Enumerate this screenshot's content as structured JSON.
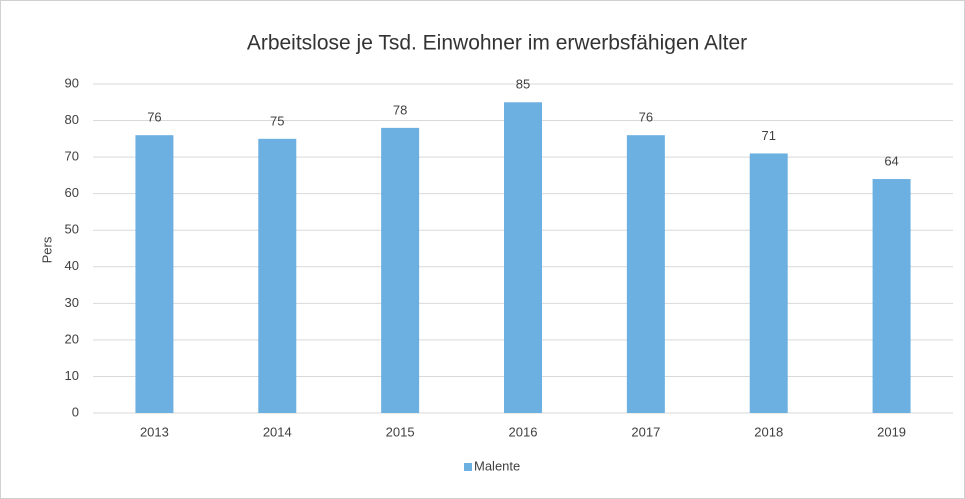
{
  "chart_data": {
    "type": "bar",
    "title": "Arbeitslose je Tsd. Einwohner im erwerbsfähigen Alter",
    "y_label": "Pers",
    "categories": [
      "2013",
      "2014",
      "2015",
      "2016",
      "2017",
      "2018",
      "2019"
    ],
    "series": [
      {
        "name": "Malente",
        "color": "#6cb0e1",
        "values": [
          76,
          75,
          78,
          85,
          76,
          71,
          64
        ]
      }
    ],
    "ylim": [
      0,
      90
    ],
    "yticks": [
      0,
      10,
      20,
      30,
      40,
      50,
      60,
      70,
      80,
      90
    ],
    "grid": true,
    "legend": "bottom",
    "data_labels": true
  }
}
